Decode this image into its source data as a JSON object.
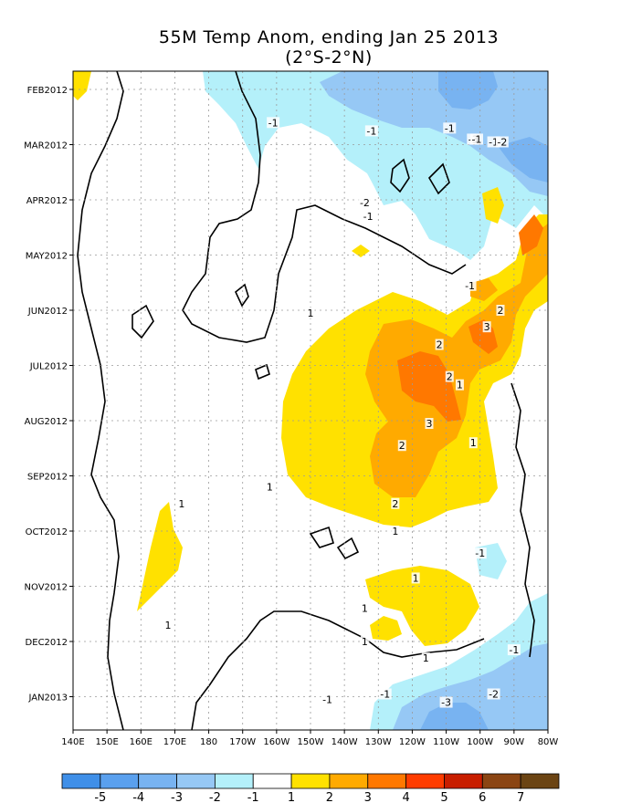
{
  "chart_data": {
    "type": "heatmap",
    "title": "55M Temp Anom, ending Jan 25 2013",
    "subtitle": "(2°S-2°N)",
    "x_ticks": [
      "140E",
      "150E",
      "160E",
      "170E",
      "180",
      "170W",
      "160W",
      "150W",
      "140W",
      "130W",
      "120W",
      "110W",
      "100W",
      "90W",
      "80W"
    ],
    "x_range_deg_east": [
      140,
      280
    ],
    "y_ticks": [
      "FEB2012",
      "MAR2012",
      "APR2012",
      "MAY2012",
      "JUN2012",
      "JUL2012",
      "AUG2012",
      "SEP2012",
      "OCT2012",
      "NOV2012",
      "DEC2012",
      "JAN2013"
    ],
    "y_range": [
      "FEB2012",
      "JAN2013"
    ],
    "grid": true,
    "colorbar": {
      "labels": [
        "-5",
        "-4",
        "-3",
        "-2",
        "-1",
        "1",
        "2",
        "3",
        "4",
        "5",
        "6",
        "7"
      ],
      "colors": [
        "#3f8fe8",
        "#5aa0ee",
        "#78b3f1",
        "#96c8f5",
        "#b4f0fa",
        "#ffffff",
        "#ffe100",
        "#ffaa00",
        "#ff7800",
        "#ff3c00",
        "#c81e00",
        "#8b4513",
        "#6b4413"
      ]
    },
    "contour_labels": [
      {
        "text": "-1",
        "lon": 199,
        "month": 0.6
      },
      {
        "text": "-1",
        "lon": 228,
        "month": 0.75
      },
      {
        "text": "-3",
        "lon": 258,
        "month": 0.9
      },
      {
        "text": "-1",
        "lon": 251,
        "month": 0.7
      },
      {
        "text": "-1",
        "lon": 259,
        "month": 0.9
      },
      {
        "text": "-1",
        "lon": 264,
        "month": 0.95
      },
      {
        "text": "-2",
        "lon": 266.5,
        "month": 0.95
      },
      {
        "text": "-2",
        "lon": 226,
        "month": 2.05
      },
      {
        "text": "-1",
        "lon": 227,
        "month": 2.3
      },
      {
        "text": "-1",
        "lon": 257,
        "month": 3.55
      },
      {
        "text": "1",
        "lon": 210,
        "month": 4.05
      },
      {
        "text": "2",
        "lon": 266,
        "month": 4.0
      },
      {
        "text": "3",
        "lon": 262,
        "month": 4.3
      },
      {
        "text": "2",
        "lon": 248,
        "month": 4.62
      },
      {
        "text": "2",
        "lon": 251,
        "month": 5.2
      },
      {
        "text": "1",
        "lon": 254,
        "month": 5.35
      },
      {
        "text": "3",
        "lon": 245,
        "month": 6.05
      },
      {
        "text": "2",
        "lon": 237,
        "month": 6.45
      },
      {
        "text": "1",
        "lon": 258,
        "month": 6.4
      },
      {
        "text": "1",
        "lon": 198,
        "month": 7.2
      },
      {
        "text": "1",
        "lon": 172,
        "month": 7.5
      },
      {
        "text": "2",
        "lon": 235,
        "month": 7.5
      },
      {
        "text": "1",
        "lon": 235,
        "month": 8.0
      },
      {
        "text": "-1",
        "lon": 260,
        "month": 8.4
      },
      {
        "text": "1",
        "lon": 241,
        "month": 8.85
      },
      {
        "text": "1",
        "lon": 226,
        "month": 9.4
      },
      {
        "text": "1",
        "lon": 168,
        "month": 9.7
      },
      {
        "text": "1",
        "lon": 226,
        "month": 10.0
      },
      {
        "text": "1",
        "lon": 244,
        "month": 10.3
      },
      {
        "text": "-1",
        "lon": 270,
        "month": 10.15
      },
      {
        "text": "-2",
        "lon": 264,
        "month": 10.95
      },
      {
        "text": "-1",
        "lon": 232,
        "month": 10.95
      },
      {
        "text": "-3",
        "lon": 250,
        "month": 11.1
      },
      {
        "text": "-1",
        "lon": 215,
        "month": 11.05
      }
    ]
  }
}
